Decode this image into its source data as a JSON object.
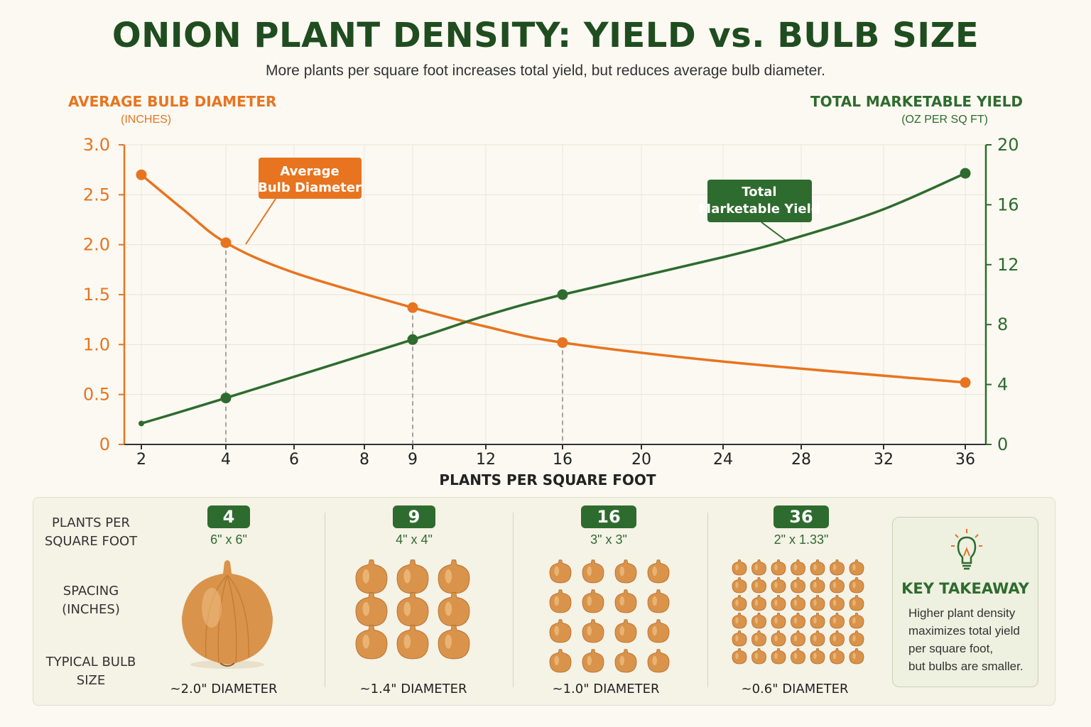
{
  "title": "ONION PLANT DENSITY: YIELD vs. BULB SIZE",
  "subtitle": "More plants per square foot increases total yield, but reduces average bulb diameter.",
  "left_axis": {
    "title": "AVERAGE BULB DIAMETER",
    "unit": "(INCHES)",
    "color": "#e8741f"
  },
  "right_axis": {
    "title": "TOTAL MARKETABLE YIELD",
    "unit": "(OZ PER SQ FT)",
    "color": "#2e6b2e"
  },
  "chart_data": {
    "type": "line",
    "title": "ONION PLANT DENSITY: YIELD vs. BULB SIZE",
    "xlabel": "PLANTS PER SQUARE FOOT",
    "x_ticks": [
      2,
      4,
      6,
      8,
      9,
      12,
      16,
      20,
      24,
      28,
      32,
      36
    ],
    "y_left_label": "AVERAGE BULB DIAMETER (INCHES)",
    "y_left_ticks": [
      "0",
      "0.5",
      "1.0",
      "1.5",
      "2.0",
      "2.5",
      "3.0"
    ],
    "y_left_lim": [
      0,
      3.0
    ],
    "y_right_label": "TOTAL MARKETABLE YIELD (OZ PER SQ FT)",
    "y_right_ticks": [
      "0",
      "4",
      "8",
      "12",
      "16",
      "20"
    ],
    "y_right_lim": [
      0,
      20
    ],
    "series": [
      {
        "name": "Average Bulb Diameter",
        "axis": "left",
        "color": "#e8741f",
        "points": [
          [
            2,
            2.7
          ],
          [
            4,
            2.02
          ],
          [
            9,
            1.37
          ],
          [
            16,
            1.02
          ],
          [
            36,
            0.62
          ]
        ],
        "curve": [
          [
            2,
            2.7
          ],
          [
            3,
            2.35
          ],
          [
            4,
            2.02
          ],
          [
            6,
            1.72
          ],
          [
            9,
            1.37
          ],
          [
            12,
            1.18
          ],
          [
            16,
            1.02
          ],
          [
            24,
            0.83
          ],
          [
            36,
            0.62
          ]
        ]
      },
      {
        "name": "Total Marketable Yield",
        "axis": "right",
        "color": "#2e6b2e",
        "points": [
          [
            4,
            3.1
          ],
          [
            9,
            7.0
          ],
          [
            16,
            10.0
          ],
          [
            36,
            18.1
          ]
        ],
        "curve": [
          [
            2,
            1.4
          ],
          [
            4,
            3.1
          ],
          [
            9,
            7.0
          ],
          [
            12,
            8.6
          ],
          [
            16,
            10.0
          ],
          [
            24,
            12.5
          ],
          [
            28,
            13.9
          ],
          [
            32,
            15.7
          ],
          [
            36,
            18.1
          ]
        ]
      }
    ],
    "annotations": [
      "Average Bulb Diameter",
      "Total Marketable Yield"
    ],
    "grid": true
  },
  "callouts": {
    "diameter": [
      "Average",
      "Bulb Diameter"
    ],
    "yield": [
      "Total",
      "Marketable Yield"
    ]
  },
  "panel": {
    "row_labels": {
      "plants": [
        "PLANTS PER",
        "SQUARE FOOT"
      ],
      "spacing": [
        "SPACING",
        "(INCHES)"
      ],
      "bulb": [
        "TYPICAL BULB",
        "SIZE"
      ]
    },
    "columns": [
      {
        "plants": "4",
        "spacing": "6\" x 6\"",
        "diameter": "~2.0\" DIAMETER",
        "onion_grid": [
          1,
          1
        ]
      },
      {
        "plants": "9",
        "spacing": "4\" x 4\"",
        "diameter": "~1.4\" DIAMETER",
        "onion_grid": [
          3,
          3
        ]
      },
      {
        "plants": "16",
        "spacing": "3\" x 3\"",
        "diameter": "~1.0\" DIAMETER",
        "onion_grid": [
          4,
          4
        ]
      },
      {
        "plants": "36",
        "spacing": "2\" x 1.33\"",
        "diameter": "~0.6\" DIAMETER",
        "onion_grid": [
          7,
          6
        ]
      }
    ],
    "takeaway": {
      "title": "KEY TAKEAWAY",
      "lines": [
        "Higher plant density",
        "maximizes total yield",
        "per square foot,",
        "but bulbs are smaller."
      ],
      "icon": "lightbulb-icon"
    }
  }
}
